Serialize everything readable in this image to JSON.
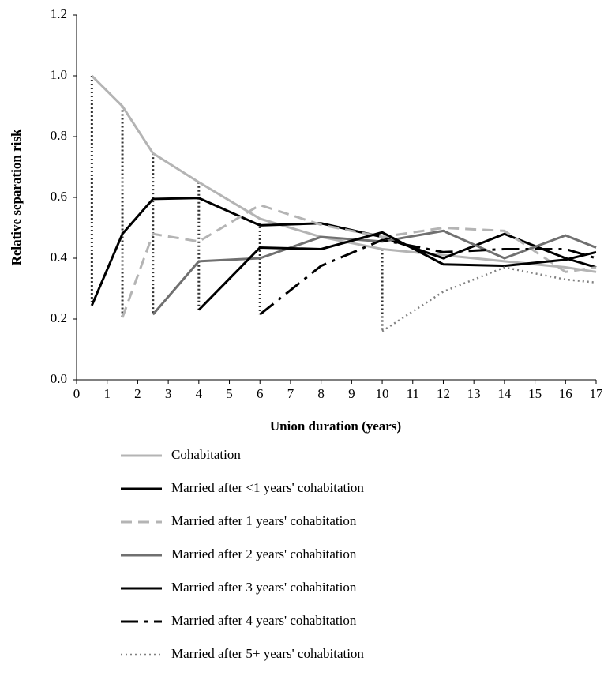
{
  "chart_data": {
    "type": "line",
    "xlabel": "Union duration (years)",
    "ylabel": "Relative separation risk",
    "xlim": [
      0,
      17
    ],
    "xticks": [
      0,
      1,
      2,
      3,
      4,
      5,
      6,
      7,
      8,
      9,
      10,
      11,
      12,
      13,
      14,
      15,
      16,
      17
    ],
    "ylim": [
      0,
      1.2
    ],
    "yticks": [
      {
        "value": 0,
        "label": "0.0"
      },
      0.2,
      0.4,
      0.6,
      0.8,
      {
        "value": 1,
        "label": "1.0"
      },
      1.2
    ],
    "series": [
      {
        "name": "Cohabitation",
        "color": "#b4b4b4",
        "style": "solid",
        "x": [
          0.5,
          1.5,
          2.5,
          4,
          6,
          8,
          10,
          12,
          14,
          16,
          17
        ],
        "values": [
          1.0,
          0.9,
          0.745,
          0.65,
          0.53,
          0.47,
          0.43,
          0.41,
          0.39,
          0.37,
          0.355
        ]
      },
      {
        "name": "Married after <1 years' cohabitation",
        "color": "#000000",
        "style": "solid",
        "x": [
          0.5,
          1.5,
          2.5,
          4,
          6,
          8,
          10,
          12,
          14,
          16,
          17
        ],
        "values": [
          0.245,
          0.48,
          0.595,
          0.598,
          0.508,
          0.515,
          0.47,
          0.4,
          0.48,
          0.4,
          0.37
        ]
      },
      {
        "name": "Married after 1 years' cohabitation",
        "color": "#b4b4b4",
        "style": "dashed",
        "x": [
          1.5,
          2.5,
          4,
          6,
          8,
          10,
          12,
          14,
          16,
          17
        ],
        "values": [
          0.205,
          0.48,
          0.455,
          0.575,
          0.51,
          0.47,
          0.5,
          0.49,
          0.355,
          0.37
        ]
      },
      {
        "name": "Married after 2 years' cohabitation",
        "color": "#707070",
        "style": "solid",
        "x": [
          2.5,
          4,
          6,
          8,
          10,
          12,
          14,
          16,
          17
        ],
        "values": [
          0.215,
          0.39,
          0.4,
          0.47,
          0.455,
          0.49,
          0.4,
          0.475,
          0.435
        ]
      },
      {
        "name": "Married after 3 years' cohabitation",
        "color": "#000000",
        "style": "solid",
        "x": [
          4,
          6,
          8,
          10,
          12,
          14,
          16,
          17
        ],
        "values": [
          0.23,
          0.435,
          0.43,
          0.485,
          0.38,
          0.375,
          0.395,
          0.42
        ]
      },
      {
        "name": "Married after 4 years' cohabitation",
        "color": "#000000",
        "style": "long-dash",
        "x": [
          6,
          8,
          10,
          12,
          14,
          16,
          17
        ],
        "values": [
          0.215,
          0.375,
          0.46,
          0.42,
          0.43,
          0.43,
          0.4
        ]
      },
      {
        "name": "Married after 5+ years' cohabitation",
        "color": "#808080",
        "style": "dotted",
        "x": [
          10,
          12,
          14,
          16,
          17
        ],
        "values": [
          0.16,
          0.29,
          0.37,
          0.33,
          0.32
        ]
      }
    ]
  }
}
